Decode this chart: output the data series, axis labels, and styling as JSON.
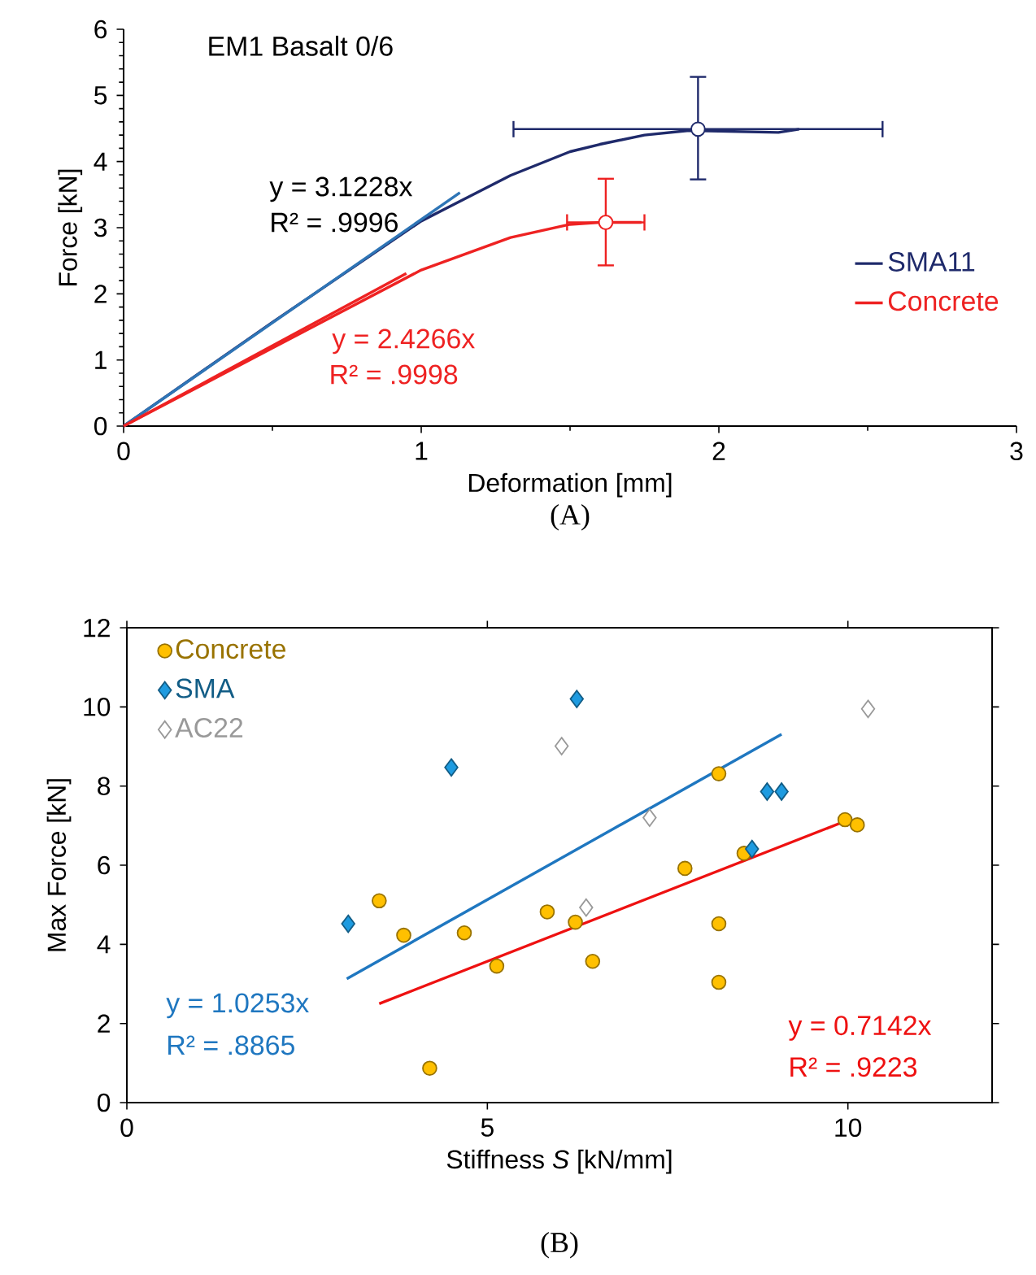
{
  "chart_data": [
    {
      "type": "line",
      "title": "EM1 Basalt 0/6",
      "xlabel": "Deformation [mm]",
      "ylabel": "Force [kN]",
      "xlim": [
        0,
        3
      ],
      "ylim": [
        0,
        6
      ],
      "xticks": [
        0,
        1,
        2,
        3
      ],
      "yticks": [
        0,
        1,
        2,
        3,
        4,
        5,
        6
      ],
      "legend": "right",
      "series": [
        {
          "name": "SMA11",
          "color": "#1f2a6b",
          "x": [
            0,
            0.5,
            1,
            1.3,
            1.5,
            1.6,
            1.75,
            1.9,
            2.2,
            2.27
          ],
          "values": [
            0,
            1.57,
            3.1,
            3.79,
            4.15,
            4.26,
            4.4,
            4.47,
            4.44,
            4.49
          ]
        },
        {
          "name": "Concrete",
          "color": "#ee2222",
          "x": [
            0,
            0.5,
            1,
            1.3,
            1.5,
            1.6,
            1.74
          ],
          "values": [
            0,
            1.18,
            2.36,
            2.85,
            3.05,
            3.08,
            3.08
          ]
        },
        {
          "type": "line",
          "color": "#2e75b6",
          "x": [
            0,
            1.13
          ],
          "values": [
            0,
            3.53
          ]
        },
        {
          "type": "line",
          "color": "#ee2222",
          "x": [
            0,
            0.95
          ],
          "values": [
            0,
            2.31
          ]
        },
        {
          "type": "scatter",
          "marker": "circle",
          "color": "#1f2a6b",
          "x": [
            1.93
          ],
          "values": [
            4.49
          ],
          "errors": [
            [
              3.73,
              5.28
            ]
          ],
          "xerrors": [
            [
              1.31,
              2.55
            ]
          ]
        },
        {
          "type": "scatter",
          "marker": "circle",
          "color": "#ee2222",
          "x": [
            1.62
          ],
          "values": [
            3.08
          ],
          "errors": [
            [
              2.43,
              3.74
            ]
          ],
          "xerrors": [
            [
              1.49,
              1.75
            ]
          ]
        }
      ],
      "annotations": [
        "y = 3.1228x",
        "R² = .9996",
        "y = 2.4266x",
        "R² = .9998",
        "(A)"
      ]
    },
    {
      "type": "scatter",
      "xlabel": "Stiffness *S* [kN/mm]",
      "ylabel": "Max Force [kN]",
      "xlim": [
        0,
        12
      ],
      "ylim": [
        0,
        12
      ],
      "xticks": [
        0,
        5,
        10
      ],
      "yticks": [
        0,
        2,
        4,
        6,
        8,
        10,
        12
      ],
      "legend": "top left",
      "series": [
        {
          "name": "Concrete",
          "color": "#ffc000",
          "marker": "circle",
          "x": [
            3.5,
            3.84,
            4.2,
            4.68,
            5.13,
            5.83,
            6.22,
            6.46,
            7.74,
            8.21,
            8.21,
            8.21,
            8.56,
            9.96,
            10.13
          ],
          "values": [
            5.1,
            4.23,
            0.87,
            4.29,
            3.45,
            4.82,
            4.56,
            3.57,
            5.92,
            8.31,
            4.52,
            3.04,
            6.3,
            7.15,
            7.02
          ]
        },
        {
          "name": "SMA",
          "color": "#1e9be0",
          "marker": "diamond",
          "x": [
            3.07,
            4.5,
            6.24,
            8.67,
            8.88,
            9.08
          ],
          "values": [
            4.52,
            8.47,
            10.2,
            6.41,
            7.86,
            7.86
          ]
        },
        {
          "name": "AC22",
          "color": "#ffffff",
          "marker": "diamond",
          "x": [
            6.03,
            6.37,
            7.25,
            10.28
          ],
          "values": [
            9.01,
            4.93,
            7.2,
            9.95
          ]
        },
        {
          "type": "line",
          "color": "#1f77c0",
          "x": [
            3.05,
            9.08
          ],
          "values": [
            3.13,
            9.31
          ]
        },
        {
          "type": "line",
          "color": "#ee1111",
          "x": [
            3.5,
            9.96
          ],
          "values": [
            2.5,
            7.11
          ]
        }
      ],
      "annotations": [
        "y = 1.0253x",
        "R² = .8865",
        "y = 0.7142x",
        "R² = .9223",
        "(B)"
      ]
    }
  ]
}
